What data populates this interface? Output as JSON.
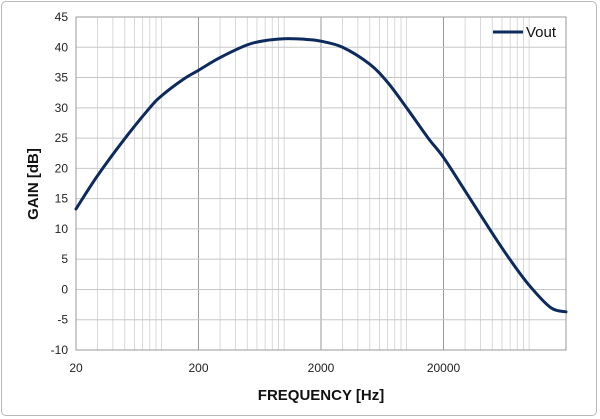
{
  "chart_data": {
    "type": "line",
    "title": "",
    "xlabel": "FREQUENCY [Hz]",
    "ylabel": "GAIN [dB]",
    "x_scale": "log",
    "xlim": [
      20,
      200000
    ],
    "ylim": [
      -10,
      45
    ],
    "y_ticks": [
      -10,
      -5,
      0,
      5,
      10,
      15,
      20,
      25,
      30,
      35,
      40,
      45
    ],
    "x_tick_labels": [
      "20",
      "200",
      "2000",
      "20000"
    ],
    "x_tick_values": [
      20,
      200,
      2000,
      20000
    ],
    "grid": true,
    "legend_position": "top-right",
    "series": [
      {
        "name": "Vout",
        "color": "#0d2a5e",
        "x": [
          20,
          30,
          50,
          80,
          100,
          150,
          200,
          300,
          500,
          700,
          1000,
          1200,
          1500,
          2000,
          3000,
          5000,
          7000,
          10000,
          15000,
          20000,
          30000,
          50000,
          70000,
          100000,
          150000,
          200000
        ],
        "y": [
          13.3,
          18.8,
          24.9,
          30.0,
          32.0,
          34.7,
          36.2,
          38.3,
          40.4,
          41.1,
          41.4,
          41.4,
          41.3,
          41.0,
          40.0,
          37.2,
          34.2,
          30.0,
          25.0,
          21.8,
          16.3,
          9.3,
          4.9,
          0.7,
          -3.0,
          -3.7
        ]
      }
    ]
  }
}
